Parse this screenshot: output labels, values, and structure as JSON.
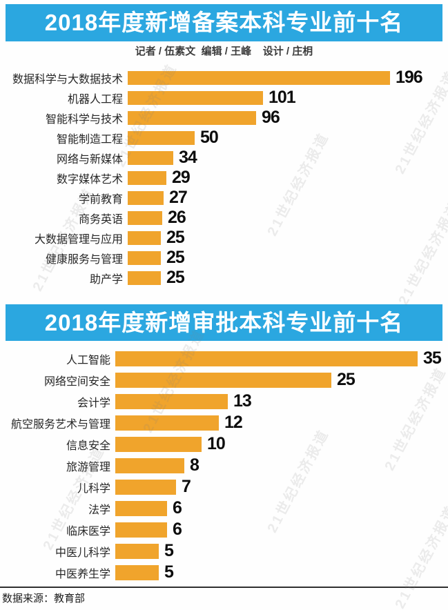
{
  "byline": "记者 / 伍素文  编辑 / 王峰    设计 / 庄枂",
  "footer": {
    "source": "数据来源：教育部"
  },
  "watermark": {
    "text": "21世纪经济报道"
  },
  "colors": {
    "banner_blue": "#2BA7E0",
    "bar_orange": "#F0A42C",
    "value_black": "#0d0d0d"
  },
  "chart_data": [
    {
      "type": "bar",
      "orientation": "horizontal",
      "title": "2018年度新增备案本科专业前十名",
      "categories": [
        "数据科学与大数据技术",
        "机器人工程",
        "智能科学与技术",
        "智能制造工程",
        "网络与新媒体",
        "数字媒体艺术",
        "学前教育",
        "商务英语",
        "大数据管理与应用",
        "健康服务与管理",
        "助产学"
      ],
      "values": [
        196,
        101,
        96,
        50,
        34,
        29,
        27,
        26,
        25,
        25,
        25
      ],
      "xlim": [
        0,
        196
      ],
      "value_labels_shown": true,
      "grid": false,
      "legend": false
    },
    {
      "type": "bar",
      "orientation": "horizontal",
      "title": "2018年度新增审批本科专业前十名",
      "categories": [
        "人工智能",
        "网络空间安全",
        "会计学",
        "航空服务艺术与管理",
        "信息安全",
        "旅游管理",
        "儿科学",
        "法学",
        "临床医学",
        "中医儿科学",
        "中医养生学"
      ],
      "values": [
        35,
        25,
        13,
        12,
        10,
        8,
        7,
        6,
        6,
        5,
        5
      ],
      "xlim": [
        0,
        35
      ],
      "value_labels_shown": true,
      "grid": false,
      "legend": false
    }
  ]
}
